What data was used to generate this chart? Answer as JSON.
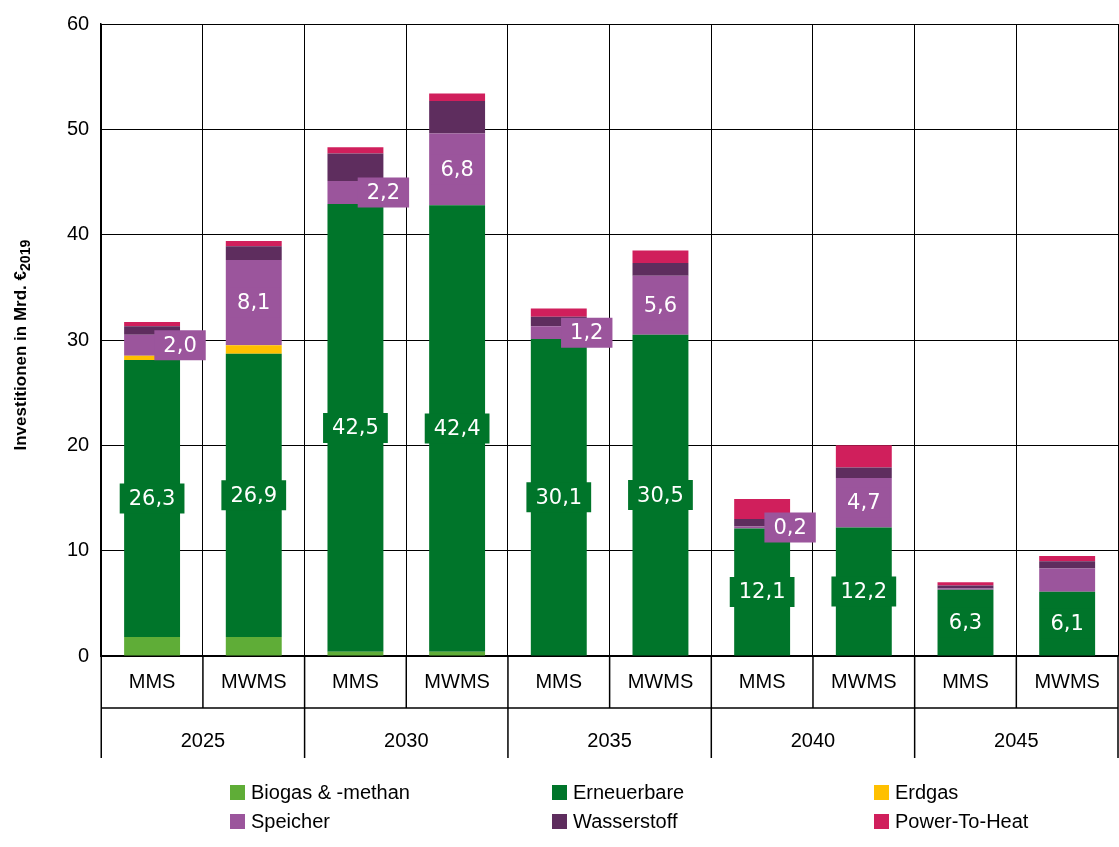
{
  "chart_data": {
    "type": "bar",
    "stacked": true,
    "ylabel": "Investitionen in Mrd. €$_{2019}$",
    "categories": [
      "MMS",
      "MWMS",
      "MMS",
      "MWMS",
      "MMS",
      "MWMS",
      "MMS",
      "MWMS",
      "MMS",
      "MWMS"
    ],
    "annotations": [
      "2025",
      "2030",
      "2035",
      "2040",
      "2045"
    ],
    "series": [
      {
        "name": "Biogas & -methan",
        "color": "#5fad37",
        "values": [
          1.8,
          1.8,
          0.4,
          0.4,
          0,
          0,
          0,
          0,
          0,
          0
        ]
      },
      {
        "name": "Erneuerbare",
        "color": "#00752a",
        "values": [
          26.3,
          26.9,
          42.5,
          42.4,
          30.1,
          30.5,
          12.1,
          12.2,
          6.3,
          6.1
        ],
        "value_labels": [
          "26,3",
          "26,9",
          "42,5",
          "42,4",
          "30,1",
          "30,5",
          "12,1",
          "12,2",
          "6,3",
          "6,1"
        ]
      },
      {
        "name": "Erdgas",
        "color": "#ffc000",
        "values": [
          0.4,
          0.8,
          0,
          0,
          0,
          0,
          0,
          0,
          0,
          0
        ]
      },
      {
        "name": "Speicher",
        "color": "#9b559c",
        "values": [
          2.0,
          8.1,
          2.2,
          6.8,
          1.2,
          5.6,
          0.2,
          4.7,
          0.1,
          2.2
        ],
        "value_labels": [
          "2,0",
          "8,1",
          "2,2",
          "6,8",
          "1,2",
          "5,6",
          "0,2",
          "4,7",
          null,
          null
        ]
      },
      {
        "name": "Wasserstoff",
        "color": "#5e2d5e",
        "values": [
          0.8,
          1.3,
          2.6,
          3.1,
          0.9,
          1.2,
          0.7,
          1.0,
          0.3,
          0.7
        ]
      },
      {
        "name": "Power-To-Heat",
        "color": "#d01f5c",
        "values": [
          0.4,
          0.5,
          0.6,
          0.7,
          0.8,
          1.2,
          1.9,
          2.1,
          0.3,
          0.5
        ]
      }
    ],
    "ylim": [
      0,
      60
    ],
    "yticks": [
      0,
      10,
      20,
      30,
      40,
      50,
      60
    ],
    "grid": true,
    "legend": "bottom"
  }
}
